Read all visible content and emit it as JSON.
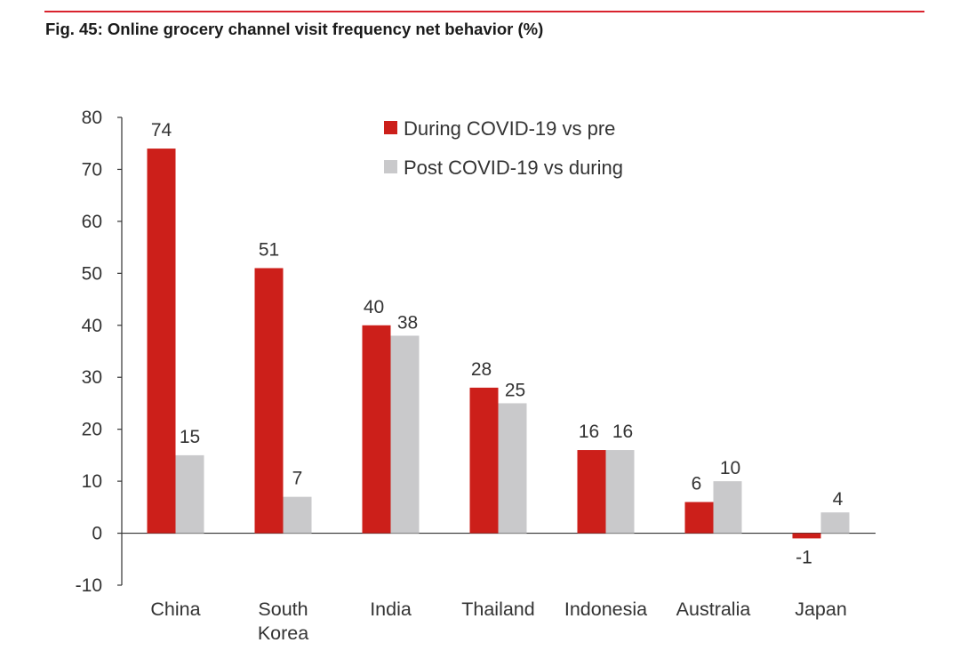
{
  "header": {
    "figure_title": "Fig. 45: Online grocery channel visit frequency net behavior (%)"
  },
  "chart_data": {
    "type": "bar",
    "title": "Fig. 45: Online grocery channel visit frequency net behavior (%)",
    "categories": [
      "China",
      "South Korea",
      "India",
      "Thailand",
      "Indonesia",
      "Australia",
      "Japan"
    ],
    "category_label_lines": [
      [
        "China"
      ],
      [
        "South",
        "Korea"
      ],
      [
        "India"
      ],
      [
        "Thailand"
      ],
      [
        "Indonesia"
      ],
      [
        "Australia"
      ],
      [
        "Japan"
      ]
    ],
    "series": [
      {
        "name": "During COVID-19 vs pre",
        "values": [
          74,
          51,
          40,
          28,
          16,
          6,
          -1
        ],
        "color": "#cc1f1a"
      },
      {
        "name": "Post COVID-19 vs during",
        "values": [
          15,
          7,
          38,
          25,
          16,
          10,
          4
        ],
        "color": "#c9c9cb"
      }
    ],
    "ylim": [
      -10,
      80
    ],
    "yticks": [
      -10,
      0,
      10,
      20,
      30,
      40,
      50,
      60,
      70,
      80
    ],
    "xlabel": "",
    "ylabel": "",
    "grid": false,
    "legend_position": "top-center",
    "data_labels": true
  }
}
